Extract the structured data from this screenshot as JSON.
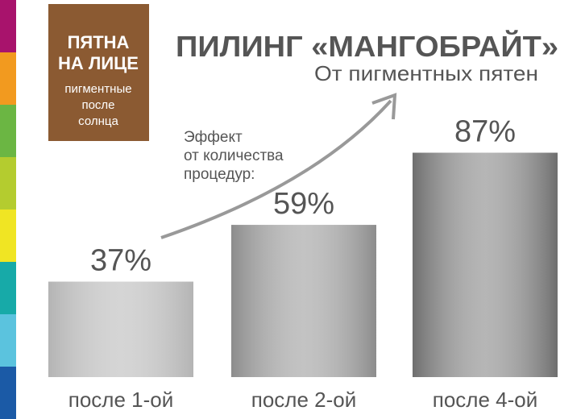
{
  "badge": {
    "title_lines": [
      "ПЯТНА",
      "НА ЛИЦЕ"
    ],
    "subtitle_lines": [
      "пигментные",
      "после",
      "солнца"
    ]
  },
  "chart_data": {
    "type": "bar",
    "title": "ПИЛИНГ «МАНГОБРАЙТ»",
    "subtitle": "От пигментных пятен",
    "annotation": [
      "Эффект",
      "от количества",
      "процедур:"
    ],
    "categories": [
      "после 1-ой",
      "после 2-ой",
      "после 4-ой"
    ],
    "values": [
      37,
      59,
      87
    ],
    "value_labels": [
      "37%",
      "59%",
      "87%"
    ],
    "colors": [
      "#b4b4b4",
      "#8c8c8c",
      "#6e6e6e"
    ]
  }
}
